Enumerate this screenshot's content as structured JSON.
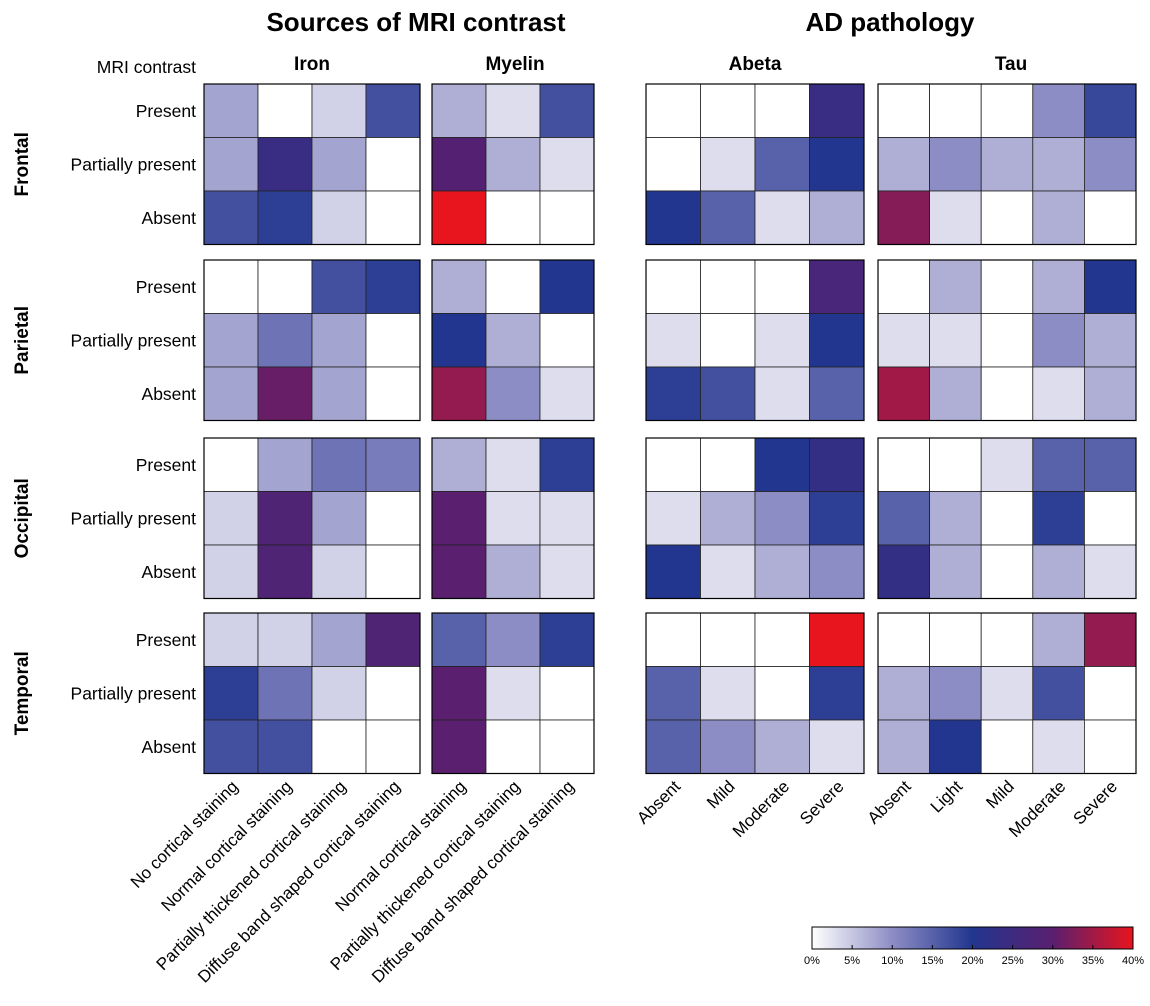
{
  "titles": {
    "left": "Sources of MRI contrast",
    "right": "AD pathology"
  },
  "row_axis_header": "MRI contrast",
  "chart_data": {
    "type": "heatmap",
    "value_unit": "%",
    "colorbar": {
      "range": [
        0,
        40
      ],
      "ticks": [
        "0%",
        "5%",
        "10%",
        "15%",
        "20%",
        "25%",
        "30%",
        "35%",
        "40%"
      ],
      "colors": [
        "#ffffff",
        "#8d8dc5",
        "#22368f",
        "#5a1f6f",
        "#e8141e"
      ]
    },
    "regions": [
      "Frontal",
      "Parietal",
      "Occipital",
      "Temporal"
    ],
    "mri_levels": [
      "Present",
      "Partially present",
      "Absent"
    ],
    "groups": [
      {
        "name": "Iron",
        "categories": [
          "No cortical staining",
          "Normal cortical staining",
          "Partially thickened cortical staining",
          "Diffuse band shaped cortical staining"
        ],
        "values": [
          [
            [
              8,
              0,
              4,
              17
            ],
            [
              8,
              24,
              8,
              0
            ],
            [
              17,
              19,
              4,
              0
            ]
          ],
          [
            [
              0,
              0,
              17,
              19
            ],
            [
              8,
              13,
              8,
              0
            ],
            [
              8,
              31,
              8,
              0
            ]
          ],
          [
            [
              0,
              8,
              13,
              12
            ],
            [
              4,
              28,
              8,
              0
            ],
            [
              4,
              28,
              4,
              0
            ]
          ],
          [
            [
              4,
              4,
              8,
              28
            ],
            [
              19,
              13,
              4,
              0
            ],
            [
              17,
              17,
              0,
              0
            ]
          ]
        ]
      },
      {
        "name": "Myelin",
        "categories": [
          "Normal cortical staining",
          "Partially thickened cortical staining",
          "Diffuse band shaped cortical staining"
        ],
        "values": [
          [
            [
              7,
              3,
              17
            ],
            [
              29,
              7,
              3
            ],
            [
              40,
              0,
              0
            ]
          ],
          [
            [
              7,
              0,
              20
            ],
            [
              20,
              7,
              0
            ],
            [
              34,
              10,
              3
            ]
          ],
          [
            [
              7,
              3,
              19
            ],
            [
              30,
              3,
              3
            ],
            [
              30,
              7,
              3
            ]
          ],
          [
            [
              15,
              10,
              19
            ],
            [
              30,
              3,
              0
            ],
            [
              30,
              0,
              0
            ]
          ]
        ]
      },
      {
        "name": "Abeta",
        "categories": [
          "Absent",
          "Mild",
          "Moderate",
          "Severe"
        ],
        "values": [
          [
            [
              0,
              0,
              0,
              24
            ],
            [
              0,
              3,
              15,
              20
            ],
            [
              20,
              15,
              3,
              7
            ]
          ],
          [
            [
              0,
              0,
              0,
              27
            ],
            [
              3,
              0,
              3,
              20
            ],
            [
              19,
              17,
              3,
              15
            ]
          ],
          [
            [
              0,
              0,
              20,
              23
            ],
            [
              3,
              7,
              10,
              19
            ],
            [
              20,
              3,
              7,
              10
            ]
          ],
          [
            [
              0,
              0,
              0,
              40
            ],
            [
              15,
              3,
              0,
              19
            ],
            [
              15,
              10,
              7,
              3
            ]
          ]
        ]
      },
      {
        "name": "Tau",
        "categories": [
          "Absent",
          "Light",
          "Mild",
          "Moderate",
          "Severe"
        ],
        "values": [
          [
            [
              0,
              0,
              0,
              10,
              18
            ],
            [
              7,
              10,
              7,
              7,
              10
            ],
            [
              33,
              3,
              0,
              7,
              0
            ]
          ],
          [
            [
              0,
              7,
              0,
              7,
              20
            ],
            [
              3,
              3,
              0,
              10,
              7
            ],
            [
              35,
              7,
              0,
              3,
              7
            ]
          ],
          [
            [
              0,
              0,
              3,
              15,
              15
            ],
            [
              15,
              7,
              0,
              19,
              0
            ],
            [
              23,
              7,
              0,
              7,
              3
            ]
          ],
          [
            [
              0,
              0,
              0,
              7,
              34
            ],
            [
              7,
              10,
              3,
              17,
              0
            ],
            [
              7,
              20,
              0,
              3,
              0
            ]
          ]
        ]
      }
    ]
  }
}
